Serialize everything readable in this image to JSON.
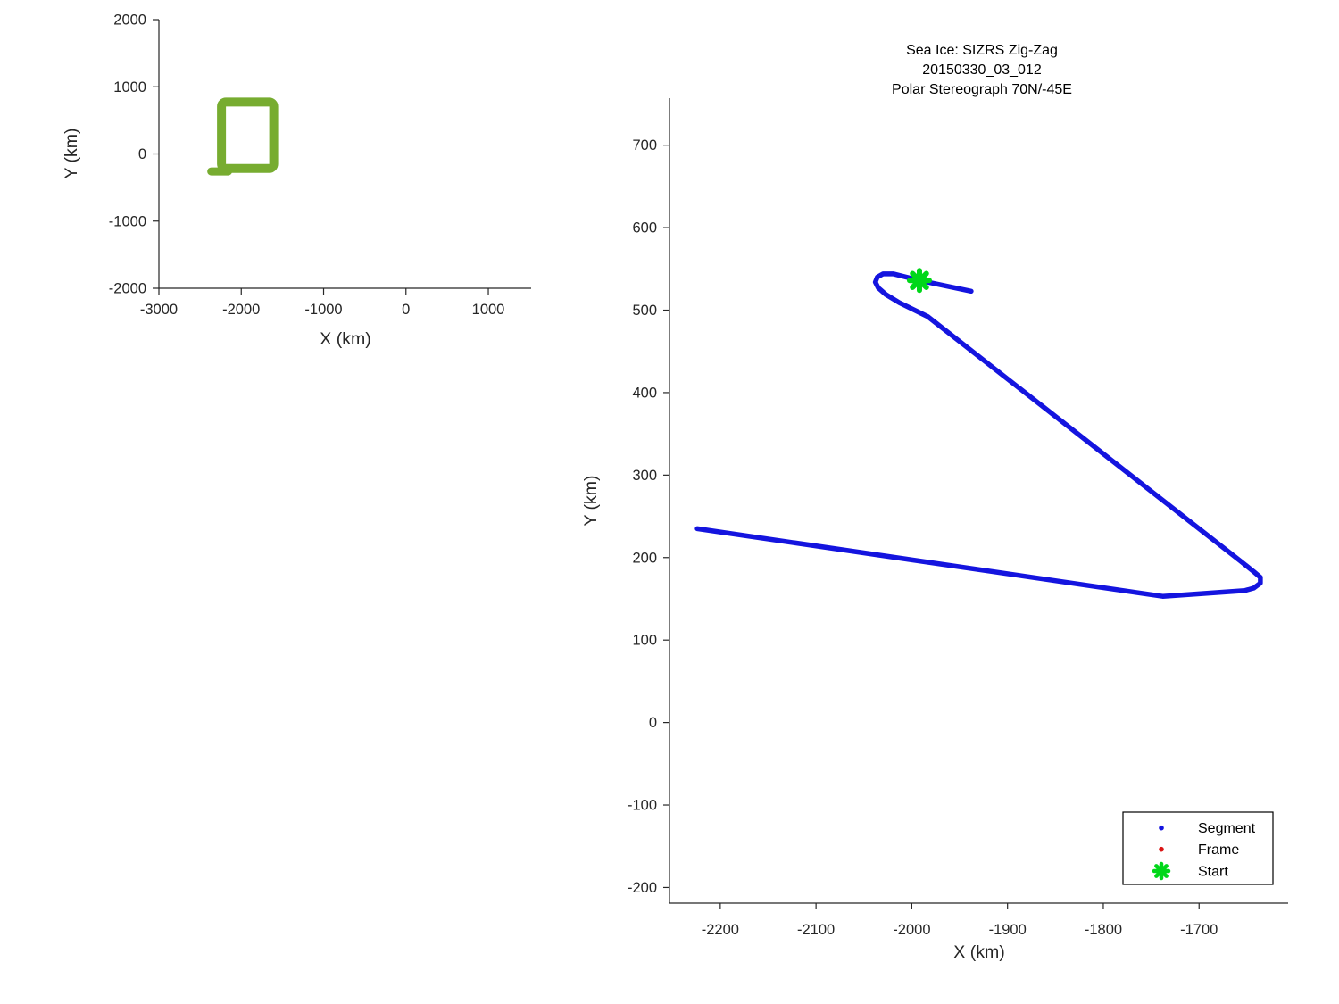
{
  "figure": {
    "background": "#ffffff"
  },
  "styles": {
    "axis_color": "#262626",
    "title_color": "#000000",
    "track_color": "#1414DF",
    "box_color": "#77AC30",
    "start_color": "#00D719",
    "frame_color": "#DB1414",
    "segment_color": "#1414DF",
    "legend_border": "#000000",
    "legend_bg": "#ffffff"
  },
  "chart_data": [
    {
      "id": "overview-map",
      "type": "line",
      "title_lines": [],
      "xlabel": "X (km)",
      "ylabel": "Y (km)",
      "xlim": [
        -3000,
        1520
      ],
      "ylim": [
        -2000,
        2000
      ],
      "x_ticks": [
        -3000,
        -2000,
        -1000,
        0,
        1000
      ],
      "y_ticks": [
        2000,
        1000,
        0,
        -1000,
        -2000
      ],
      "grid": false,
      "series": [
        {
          "name": "coverage-box",
          "type": "rect-outline",
          "x_km": [
            -2240,
            -1606
          ],
          "y_km": [
            -216,
            773
          ]
        }
      ],
      "tail_segment_km": [
        [
          -2364,
          -260
        ],
        [
          -2160,
          -260
        ]
      ]
    },
    {
      "id": "zigzag-track",
      "type": "line",
      "title_lines": [
        "Sea Ice: SIZRS Zig-Zag",
        "20150330_03_012",
        "Polar Stereograph 70N/-45E"
      ],
      "xlabel": "X (km)",
      "ylabel": "Y (km)",
      "xlim": [
        -2253,
        -1607
      ],
      "ylim": [
        -219,
        757
      ],
      "x_ticks": [
        -2200,
        -2100,
        -2000,
        -1900,
        -1800,
        -1700
      ],
      "y_ticks": [
        700,
        600,
        500,
        400,
        300,
        200,
        100,
        0,
        -100,
        -200
      ],
      "grid": false,
      "track_points_km": [
        [
          -1938,
          523
        ],
        [
          -1992,
          536
        ],
        [
          -2019,
          544
        ],
        [
          -2030,
          544
        ],
        [
          -2036,
          540
        ],
        [
          -2038,
          534
        ],
        [
          -2035,
          527
        ],
        [
          -2027,
          519
        ],
        [
          -2013,
          509
        ],
        [
          -1983,
          492
        ],
        [
          -1657,
          196
        ],
        [
          -1643,
          183
        ],
        [
          -1636,
          176
        ],
        [
          -1636,
          169
        ],
        [
          -1643,
          163
        ],
        [
          -1652,
          160
        ],
        [
          -1738,
          153
        ],
        [
          -2224,
          235
        ]
      ],
      "start_marker_km": [
        -1992,
        536
      ],
      "legend": {
        "position": "southeast",
        "entries": [
          {
            "label": "Segment",
            "marker": "dot",
            "color": "#1414DF"
          },
          {
            "label": "Frame",
            "marker": "dot",
            "color": "#DB1414"
          },
          {
            "label": "Start",
            "marker": "asterisk",
            "color": "#00D719"
          }
        ]
      }
    }
  ]
}
